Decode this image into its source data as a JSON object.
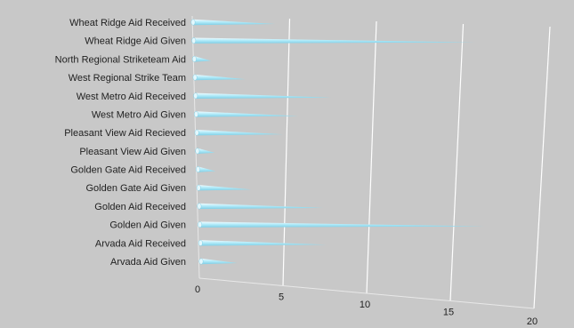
{
  "chart_data": {
    "type": "bar",
    "orientation": "horizontal",
    "style": "3d-cone",
    "title": "",
    "xlabel": "",
    "ylabel": "",
    "categories": [
      "Wheat Ridge Aid Received",
      "Wheat Ridge Aid Given",
      "North Regional Striketeam Aid",
      "West Regional Strike Team",
      "West Metro Aid Received",
      "West Metro Aid Given",
      "Pleasant View Aid Recieved",
      "Pleasant View Aid Given",
      "Golden Gate Aid Received",
      "Golden Gate  Aid Given",
      "Golden Aid Received",
      "Golden Aid Given",
      "Arvada  Aid Received",
      "Arvada  Aid Given"
    ],
    "values": [
      5,
      17,
      1,
      3,
      8,
      6,
      5,
      1,
      1,
      3,
      7,
      16,
      7,
      2
    ],
    "xlim": [
      0,
      20
    ],
    "xticks": [
      "0",
      "5",
      "10",
      "15",
      "20"
    ],
    "grid": true,
    "colors": {
      "background": "#c8c8c8",
      "bar": "#9fe3f5",
      "bar_highlight": "#e4f8fd",
      "gridline": "#ffffff"
    }
  }
}
